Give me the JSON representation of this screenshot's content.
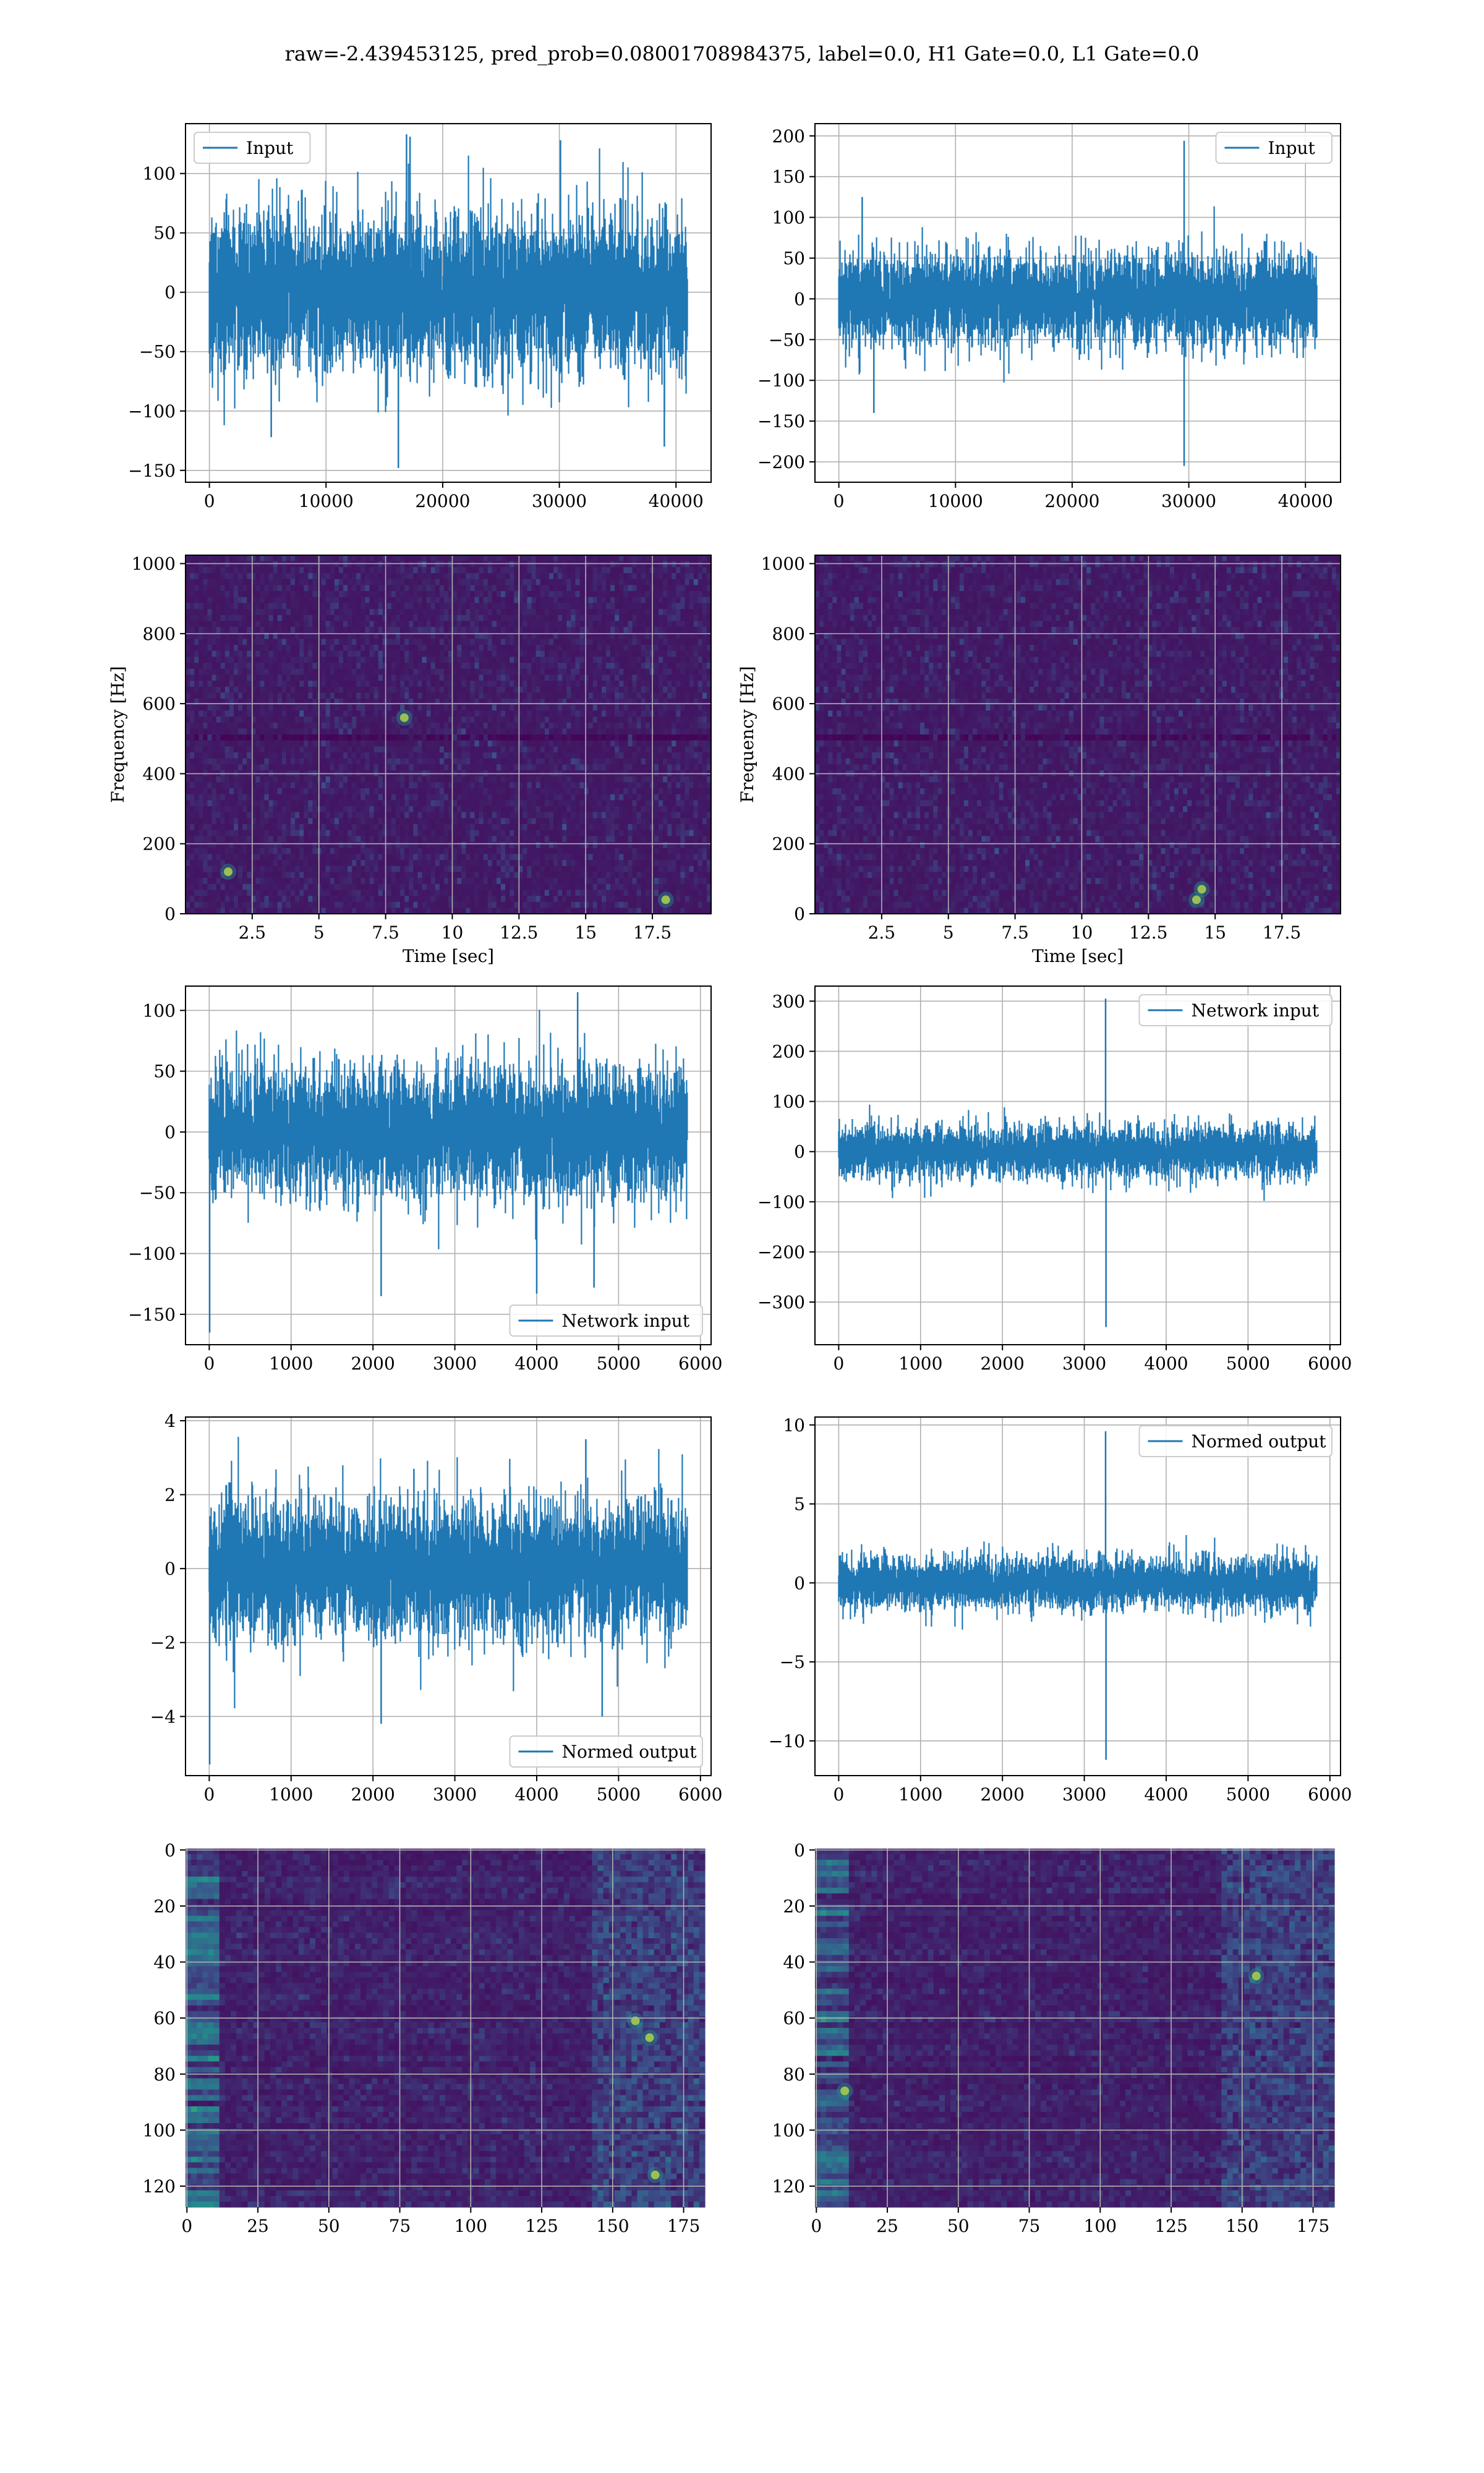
{
  "suptitle": "raw=-2.439453125, pred_prob=0.08001708984375, label=0.0, H1 Gate=0.0, L1 Gate=0.0",
  "colors": {
    "line": "#1f77b4",
    "grid": "#b0b0b0",
    "viridis_low": "#440154",
    "viridis_mid": "#21918c",
    "viridis_high": "#fde725"
  },
  "chart_data": [
    {
      "id": "input_h1",
      "type": "line",
      "legend": "top-left",
      "series": [
        {
          "name": "Input",
          "n": 40960,
          "std": 32,
          "extremes": [
            {
              "x": 16200,
              "y": -148
            },
            {
              "x": 16900,
              "y": 133
            },
            {
              "x": 17200,
              "y": 131
            },
            {
              "x": 30100,
              "y": 128
            },
            {
              "x": 5300,
              "y": -122
            },
            {
              "x": 39000,
              "y": -130
            }
          ]
        }
      ],
      "xlim": [
        -2048,
        43008
      ],
      "ylim": [
        -160,
        142
      ],
      "xticks": [
        0,
        10000,
        20000,
        30000,
        40000
      ],
      "yticks": [
        -150,
        -100,
        -50,
        0,
        50,
        100
      ],
      "grid": true,
      "xlabel": "",
      "ylabel": ""
    },
    {
      "id": "input_l1",
      "type": "line",
      "legend": "top-right",
      "series": [
        {
          "name": "Input",
          "n": 40960,
          "std": 28,
          "extremes": [
            {
              "x": 29600,
              "y": 194
            },
            {
              "x": 29600,
              "y": -205
            },
            {
              "x": 2000,
              "y": 125
            },
            {
              "x": 3000,
              "y": -140
            }
          ]
        }
      ],
      "xlim": [
        -2048,
        43008
      ],
      "ylim": [
        -225,
        215
      ],
      "xticks": [
        0,
        10000,
        20000,
        30000,
        40000
      ],
      "yticks": [
        -200,
        -150,
        -100,
        -50,
        0,
        50,
        100,
        150,
        200
      ],
      "grid": true,
      "xlabel": "",
      "ylabel": ""
    },
    {
      "id": "spec_h1",
      "type": "heatmap",
      "colormap": "viridis",
      "max_hotspots": [
        {
          "x": 8.2,
          "y": 560
        },
        {
          "x": 18.0,
          "y": 40
        },
        {
          "x": 1.6,
          "y": 120
        }
      ],
      "xlim": [
        0,
        19.7
      ],
      "ylim": [
        0,
        1024
      ],
      "xticks": [
        2.5,
        5.0,
        7.5,
        10.0,
        12.5,
        15.0,
        17.5
      ],
      "yticks": [
        0,
        200,
        400,
        600,
        800,
        1000
      ],
      "xlabel": "Time [sec]",
      "ylabel": "Frequency [Hz]",
      "grid": true
    },
    {
      "id": "spec_l1",
      "type": "heatmap",
      "colormap": "viridis",
      "max_hotspots": [
        {
          "x": 14.3,
          "y": 40
        },
        {
          "x": 14.5,
          "y": 70
        }
      ],
      "xlim": [
        0,
        19.7
      ],
      "ylim": [
        0,
        1024
      ],
      "xticks": [
        2.5,
        5.0,
        7.5,
        10.0,
        12.5,
        15.0,
        17.5
      ],
      "yticks": [
        0,
        200,
        400,
        600,
        800,
        1000
      ],
      "xlabel": "Time [sec]",
      "ylabel": "Frequency [Hz]",
      "grid": true
    },
    {
      "id": "net_h1",
      "type": "line",
      "legend": "bottom-right",
      "series": [
        {
          "name": "Network input",
          "n": 5840,
          "std": 26,
          "extremes": [
            {
              "x": 5,
              "y": -165
            },
            {
              "x": 2100,
              "y": -135
            },
            {
              "x": 4700,
              "y": -128
            },
            {
              "x": 4000,
              "y": -133
            },
            {
              "x": 4500,
              "y": 115
            }
          ]
        }
      ],
      "xlim": [
        -290,
        6130
      ],
      "ylim": [
        -175,
        120
      ],
      "xticks": [
        0,
        1000,
        2000,
        3000,
        4000,
        5000,
        6000
      ],
      "yticks": [
        -150,
        -100,
        -50,
        0,
        50,
        100
      ],
      "grid": true,
      "xlabel": "",
      "ylabel": ""
    },
    {
      "id": "net_l1",
      "type": "line",
      "legend": "top-right",
      "series": [
        {
          "name": "Network input",
          "n": 5840,
          "std": 26,
          "extremes": [
            {
              "x": 3260,
              "y": 305
            },
            {
              "x": 3265,
              "y": -350
            }
          ]
        }
      ],
      "xlim": [
        -290,
        6130
      ],
      "ylim": [
        -385,
        330
      ],
      "xticks": [
        0,
        1000,
        2000,
        3000,
        4000,
        5000,
        6000
      ],
      "yticks": [
        -300,
        -200,
        -100,
        0,
        100,
        200,
        300
      ],
      "grid": true,
      "xlabel": "",
      "ylabel": ""
    },
    {
      "id": "norm_h1",
      "type": "line",
      "legend": "bottom-right",
      "series": [
        {
          "name": "Normed output",
          "n": 5840,
          "std": 0.9,
          "extremes": [
            {
              "x": 5,
              "y": -5.3
            },
            {
              "x": 2100,
              "y": -4.2
            },
            {
              "x": 4800,
              "y": -4.0
            },
            {
              "x": 4600,
              "y": 3.5
            },
            {
              "x": 2500,
              "y": 2.7
            }
          ]
        }
      ],
      "xlim": [
        -290,
        6130
      ],
      "ylim": [
        -5.6,
        4.1
      ],
      "xticks": [
        0,
        1000,
        2000,
        3000,
        4000,
        5000,
        6000
      ],
      "yticks": [
        -4,
        -2,
        0,
        2,
        4
      ],
      "grid": true,
      "xlabel": "",
      "ylabel": ""
    },
    {
      "id": "norm_l1",
      "type": "line",
      "legend": "top-right",
      "series": [
        {
          "name": "Normed output",
          "n": 5840,
          "std": 0.85,
          "extremes": [
            {
              "x": 3260,
              "y": 9.6
            },
            {
              "x": 3265,
              "y": -11.2
            }
          ]
        }
      ],
      "xlim": [
        -290,
        6130
      ],
      "ylim": [
        -12.2,
        10.5
      ],
      "xticks": [
        0,
        1000,
        2000,
        3000,
        4000,
        5000,
        6000
      ],
      "yticks": [
        -10,
        -5,
        0,
        5,
        10
      ],
      "grid": true,
      "xlabel": "",
      "ylabel": ""
    },
    {
      "id": "feat_h1",
      "type": "heatmap",
      "colormap": "viridis",
      "y_inverted": true,
      "max_hotspots": [
        {
          "x": 158,
          "y": 61
        },
        {
          "x": 163,
          "y": 67
        },
        {
          "x": 165,
          "y": 116
        }
      ],
      "xlim": [
        -0.5,
        182.5
      ],
      "ylim": [
        127.5,
        -0.5
      ],
      "xticks": [
        0,
        25,
        50,
        75,
        100,
        125,
        150,
        175
      ],
      "yticks": [
        0,
        20,
        40,
        60,
        80,
        100,
        120
      ],
      "grid": true,
      "xlabel": "",
      "ylabel": ""
    },
    {
      "id": "feat_l1",
      "type": "heatmap",
      "colormap": "viridis",
      "y_inverted": true,
      "max_hotspots": [
        {
          "x": 155,
          "y": 45
        },
        {
          "x": 10,
          "y": 86
        }
      ],
      "xlim": [
        -0.5,
        182.5
      ],
      "ylim": [
        127.5,
        -0.5
      ],
      "xticks": [
        0,
        25,
        50,
        75,
        100,
        125,
        150,
        175
      ],
      "yticks": [
        0,
        20,
        40,
        60,
        80,
        100,
        120
      ],
      "grid": true,
      "xlabel": "",
      "ylabel": ""
    }
  ]
}
